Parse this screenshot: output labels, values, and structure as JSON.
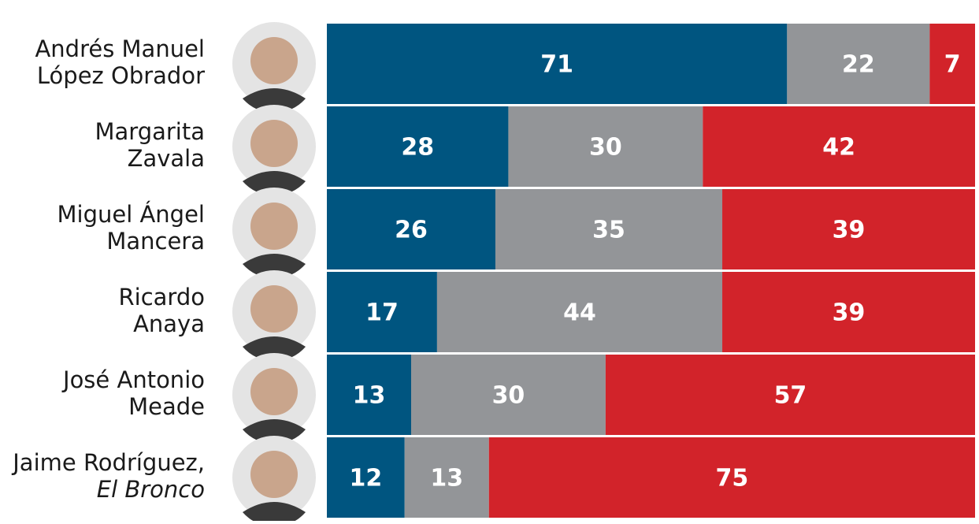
{
  "chart_data": {
    "type": "stacked-bar",
    "categories": [
      [
        "Andrés Manuel",
        "López Obrador"
      ],
      [
        "Margarita",
        "Zavala"
      ],
      [
        "Miguel Ángel",
        "Mancera"
      ],
      [
        "Ricardo",
        "Anaya"
      ],
      [
        "José Antonio",
        "Meade"
      ],
      [
        "Jaime Rodríguez,",
        "El Bronco"
      ]
    ],
    "series": [
      {
        "color": "#005580",
        "values": [
          71,
          28,
          26,
          17,
          13,
          12
        ]
      },
      {
        "color": "#939598",
        "values": [
          22,
          30,
          35,
          44,
          30,
          13
        ]
      },
      {
        "color": "#d2232a",
        "values": [
          7,
          42,
          39,
          39,
          57,
          75
        ]
      }
    ],
    "xlim": [
      0,
      100
    ]
  }
}
